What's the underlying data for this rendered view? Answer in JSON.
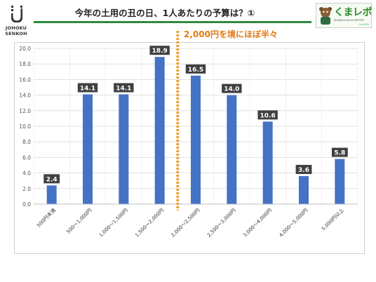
{
  "header": {
    "logo_text_line1": "JOHOKU",
    "logo_text_line2": "SENKOH",
    "title": "今年の土用の丑の日、1人あたりの予算は？①",
    "brand_title": "くまレポ",
    "brand_sub": "KUMASHI MACHI REPORT",
    "brand_small": "by JHSK"
  },
  "annotation": "2,000円を境にほぼ半々",
  "colors": {
    "bar": "#4472c4",
    "label_bg": "#404040",
    "divider": "#f0a030",
    "title_rule": "#2e8b3e"
  },
  "chart_data": {
    "type": "bar",
    "categories": [
      "500円未満",
      "500～1,000円",
      "1,000～1,500円",
      "1,500～2,000円",
      "2,000～2,500円",
      "2,500～3,000円",
      "3,000～4,000円",
      "4,000～5,000円",
      "5,000円以上"
    ],
    "values": [
      2.4,
      14.1,
      14.1,
      18.9,
      16.5,
      14.0,
      10.6,
      3.6,
      5.8
    ],
    "value_labels": [
      "2.4",
      "14.1",
      "14.1",
      "18.9",
      "16.5",
      "14.0",
      "10.6",
      "3.6",
      "5.8"
    ],
    "ylim": [
      0,
      20
    ],
    "yticks": [
      "0.0",
      "2.0",
      "4.0",
      "6.0",
      "8.0",
      "10.0",
      "12.0",
      "14.0",
      "16.0",
      "18.0",
      "20.0"
    ],
    "grid": true,
    "divider_between": [
      3,
      4
    ]
  }
}
